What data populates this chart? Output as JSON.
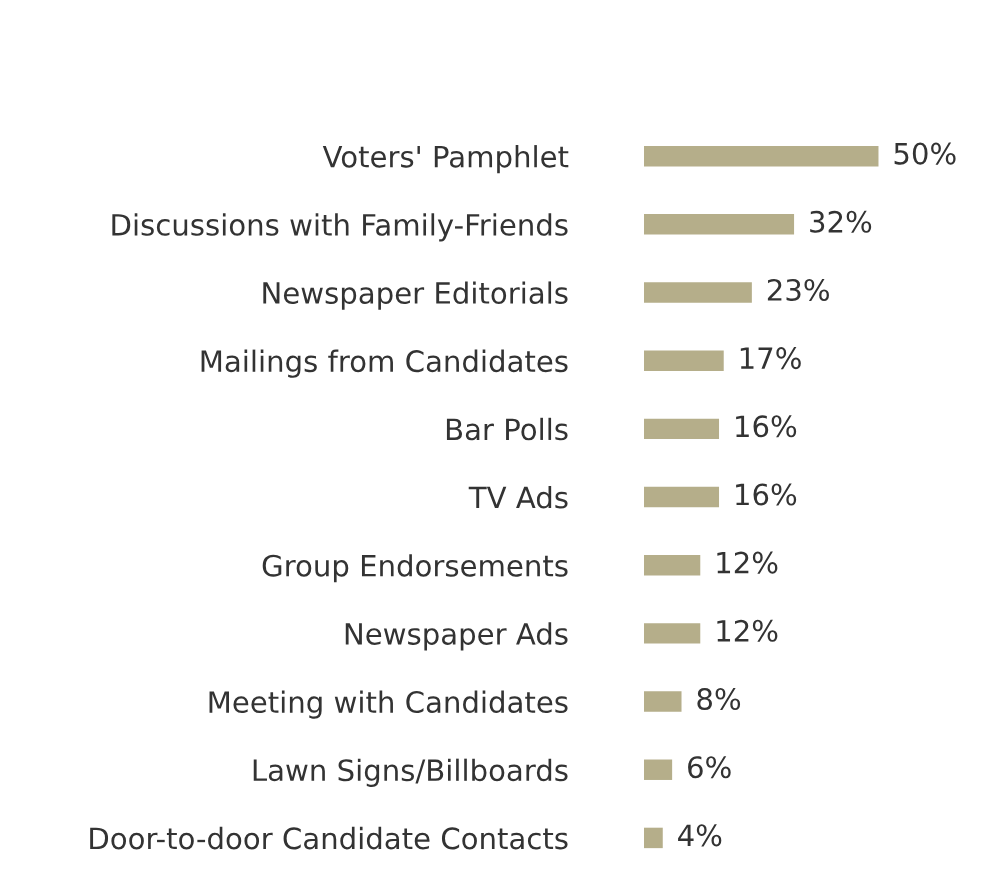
{
  "chart_data": {
    "type": "bar",
    "orientation": "horizontal",
    "categories": [
      "Voters' Pamphlet",
      "Discussions with Family-Friends",
      "Newspaper Editorials",
      "Mailings from Candidates",
      "Bar Polls",
      "TV Ads",
      "Group Endorsements",
      "Newspaper Ads",
      "Meeting with Candidates",
      "Lawn Signs/Billboards",
      "Door-to-door Candidate Contacts"
    ],
    "values": [
      50,
      32,
      23,
      17,
      16,
      16,
      12,
      12,
      8,
      6,
      4
    ],
    "value_labels": [
      "50%",
      "32%",
      "23%",
      "17%",
      "16%",
      "16%",
      "12%",
      "12%",
      "8%",
      "6%",
      "4%"
    ],
    "color": "#b5ae8a",
    "grid": false,
    "legend": false,
    "tick_labels": "y"
  }
}
